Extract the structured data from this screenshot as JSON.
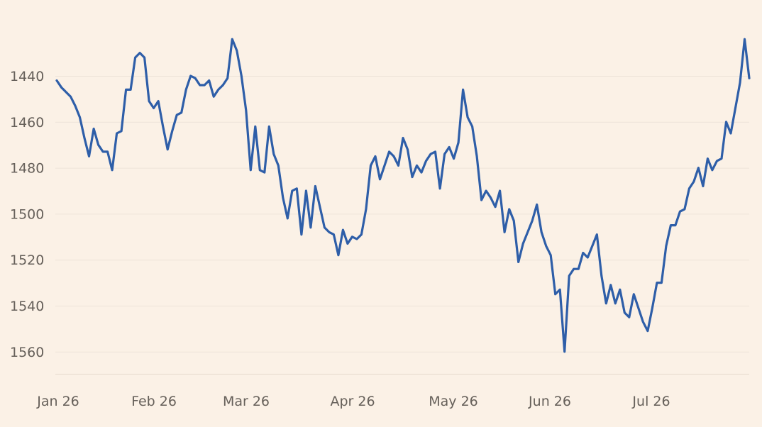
{
  "chart_data": {
    "type": "line",
    "title": "",
    "xlabel": "",
    "ylabel": "",
    "y_inverted": true,
    "ylim": [
      1425,
      1570
    ],
    "yticks": [
      1440,
      1460,
      1480,
      1500,
      1520,
      1540,
      1560
    ],
    "xticks": [
      "Jan 26",
      "Feb 26",
      "Mar 26",
      "Apr 26",
      "May 26",
      "Jun 26",
      "Jul 26"
    ],
    "grid": "horizontal",
    "highlight_start_index": 152,
    "colors": {
      "line": "#2e5ea8",
      "background": "#fbf1e6",
      "highlight": "#f7e2d4",
      "grid": "#ede3d8",
      "tick_text": "#66605a"
    },
    "series": [
      {
        "values": [
          1442,
          1445,
          1447,
          1449,
          1453,
          1458,
          1467,
          1475,
          1463,
          1470,
          1473,
          1473,
          1481,
          1465,
          1464,
          1446,
          1446,
          1432,
          1430,
          1432,
          1451,
          1454,
          1451,
          1462,
          1472,
          1464,
          1457,
          1456,
          1446,
          1440,
          1441,
          1444,
          1444,
          1442,
          1449,
          1446,
          1444,
          1441,
          1424,
          1429,
          1440,
          1455,
          1481,
          1462,
          1481,
          1482,
          1462,
          1474,
          1479,
          1493,
          1502,
          1490,
          1489,
          1509,
          1490,
          1506,
          1488,
          1497,
          1506,
          1508,
          1509,
          1518,
          1507,
          1513,
          1510,
          1511,
          1509,
          1498,
          1479,
          1475,
          1485,
          1479,
          1473,
          1475,
          1479,
          1467,
          1472,
          1484,
          1479,
          1482,
          1477,
          1474,
          1473,
          1489,
          1474,
          1471,
          1476,
          1469,
          1446,
          1458,
          1462,
          1475,
          1494,
          1490,
          1493,
          1497,
          1490,
          1508,
          1498,
          1503,
          1521,
          1513,
          1508,
          1503,
          1496,
          1508,
          1514,
          1518,
          1535,
          1533,
          1560,
          1527,
          1524,
          1524,
          1517,
          1519,
          1514,
          1509,
          1527,
          1539,
          1531,
          1539,
          1533,
          1543,
          1545,
          1535,
          1541,
          1547,
          1551,
          1541,
          1530,
          1530,
          1514,
          1505,
          1505,
          1499,
          1498,
          1489,
          1486,
          1480,
          1488,
          1476,
          1481,
          1477,
          1476,
          1460,
          1465,
          1454,
          1443,
          1424,
          1441
        ]
      }
    ]
  }
}
